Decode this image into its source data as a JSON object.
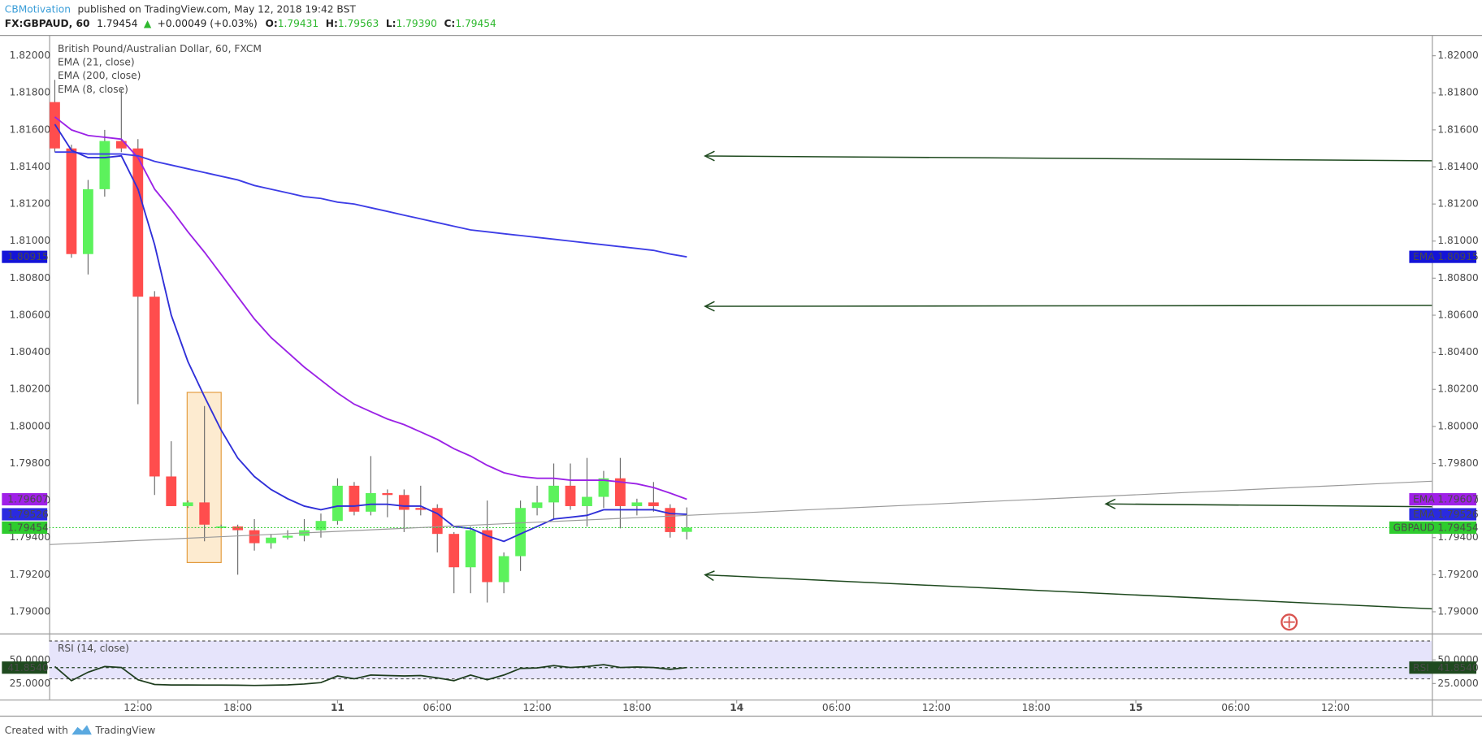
{
  "header": {
    "author": "CBMotivation",
    "published": "published on TradingView.com, May 12, 2018 19:42 BST",
    "symbol": "FX:GBPAUD, 60",
    "last": "1.79454",
    "arrow": "▲",
    "change": "+0.00049 (+0.03%)",
    "ohlc": [
      {
        "label": "O:",
        "value": "1.79431"
      },
      {
        "label": "H:",
        "value": "1.79563"
      },
      {
        "label": "L:",
        "value": "1.79390"
      },
      {
        "label": "C:",
        "value": "1.79454"
      }
    ]
  },
  "footer": {
    "created": "Created with",
    "brand": "TradingView"
  },
  "chart_data": [
    {
      "type": "candlestick",
      "title": "British Pound/Australian Dollar, 60, FXCM",
      "badge_name": "GBPAUD",
      "up_color": "#5cf25c",
      "down_color": "#ff4d4d",
      "price_line_color": "#2ecc2e",
      "x": [
        0,
        1,
        2,
        3,
        4,
        5,
        6,
        7,
        8,
        9,
        10,
        11,
        12,
        13,
        14,
        15,
        16,
        17,
        18,
        19,
        20,
        21,
        22,
        23,
        24,
        25,
        26,
        27,
        28,
        29,
        30,
        31,
        32,
        33,
        34,
        35,
        36,
        37,
        38
      ],
      "open": [
        1.8175,
        1.815,
        1.8093,
        1.8128,
        1.8154,
        1.815,
        1.807,
        1.7973,
        1.7957,
        1.7959,
        1.7946,
        1.7946,
        1.7944,
        1.7937,
        1.794,
        1.7941,
        1.7944,
        1.7949,
        1.7968,
        1.7954,
        1.7964,
        1.7963,
        1.7956,
        1.7956,
        1.7942,
        1.7924,
        1.7944,
        1.7916,
        1.793,
        1.7956,
        1.7959,
        1.7968,
        1.7957,
        1.7962,
        1.7972,
        1.7957,
        1.7959,
        1.7956,
        1.79431
      ],
      "high": [
        1.8187,
        1.8152,
        1.8133,
        1.816,
        1.8182,
        1.8155,
        1.8073,
        1.7992,
        1.796,
        1.8011,
        1.7947,
        1.7947,
        1.795,
        1.7942,
        1.7944,
        1.795,
        1.7953,
        1.7972,
        1.797,
        1.7984,
        1.7966,
        1.7966,
        1.7968,
        1.7958,
        1.7943,
        1.7946,
        1.796,
        1.7932,
        1.796,
        1.7968,
        1.798,
        1.798,
        1.7983,
        1.7976,
        1.7983,
        1.7961,
        1.797,
        1.7958,
        1.79563
      ],
      "low": [
        1.8148,
        1.8091,
        1.8082,
        1.8124,
        1.8148,
        1.8012,
        1.7963,
        1.7957,
        1.7956,
        1.7938,
        1.7945,
        1.792,
        1.7933,
        1.7934,
        1.7939,
        1.7938,
        1.794,
        1.7947,
        1.7952,
        1.7952,
        1.7951,
        1.7943,
        1.7952,
        1.7932,
        1.791,
        1.791,
        1.7905,
        1.791,
        1.7922,
        1.7952,
        1.795,
        1.7955,
        1.7946,
        1.7956,
        1.7945,
        1.7952,
        1.7954,
        1.794,
        1.7939
      ],
      "close": [
        1.815,
        1.8093,
        1.8128,
        1.8154,
        1.815,
        1.807,
        1.7973,
        1.7957,
        1.7959,
        1.7947,
        1.7946,
        1.7944,
        1.7937,
        1.794,
        1.7941,
        1.7944,
        1.7949,
        1.7968,
        1.7954,
        1.7964,
        1.7963,
        1.7955,
        1.7955,
        1.7942,
        1.7924,
        1.7944,
        1.7916,
        1.793,
        1.7956,
        1.7959,
        1.7968,
        1.7957,
        1.7962,
        1.7972,
        1.7957,
        1.7959,
        1.7957,
        1.7943,
        1.79454
      ],
      "series": [
        {
          "name": "EMA (21, close)",
          "badge_name": "EMA",
          "color": "#9b22e6",
          "badge_color": "#a020e8",
          "values": [
            1.8167,
            1.816,
            1.8157,
            1.8156,
            1.8155,
            1.8145,
            1.8128,
            1.8117,
            1.8105,
            1.8094,
            1.8082,
            1.807,
            1.8058,
            1.8048,
            1.804,
            1.8032,
            1.8025,
            1.8018,
            1.8012,
            1.8008,
            1.8004,
            1.8001,
            1.7997,
            1.7993,
            1.7988,
            1.7984,
            1.7979,
            1.7975,
            1.7973,
            1.7972,
            1.7972,
            1.7971,
            1.7971,
            1.7971,
            1.797,
            1.7969,
            1.7967,
            1.7964,
            1.79607
          ]
        },
        {
          "name": "EMA (200, close)",
          "badge_name": "EMA",
          "color": "#3d3de6",
          "badge_color": "#1414d8",
          "values": [
            1.8148,
            1.8148,
            1.8147,
            1.8147,
            1.8147,
            1.8146,
            1.8143,
            1.8141,
            1.8139,
            1.8137,
            1.8135,
            1.8133,
            1.813,
            1.8128,
            1.8126,
            1.8124,
            1.8123,
            1.8121,
            1.812,
            1.8118,
            1.8116,
            1.8114,
            1.8112,
            1.811,
            1.8108,
            1.8106,
            1.8105,
            1.8104,
            1.8103,
            1.8102,
            1.8101,
            1.81,
            1.8099,
            1.8098,
            1.8097,
            1.8096,
            1.8095,
            1.8093,
            1.80915
          ]
        },
        {
          "name": "EMA (8, close)",
          "badge_name": "EMA",
          "color": "#2f2fd8",
          "badge_color": "#2a2ae0",
          "values": [
            1.8163,
            1.8149,
            1.8145,
            1.8145,
            1.8146,
            1.8128,
            1.8098,
            1.806,
            1.8035,
            1.8016,
            1.7998,
            1.7983,
            1.7973,
            1.7966,
            1.7961,
            1.7957,
            1.7955,
            1.7957,
            1.7957,
            1.7958,
            1.7958,
            1.7957,
            1.7957,
            1.7953,
            1.7946,
            1.7945,
            1.7941,
            1.7938,
            1.7942,
            1.7946,
            1.795,
            1.7951,
            1.7952,
            1.7955,
            1.7955,
            1.7955,
            1.7955,
            1.7953,
            1.79526
          ]
        }
      ],
      "xlim": [
        -0.34,
        82.8
      ],
      "ylim": [
        1.78883,
        1.82107
      ],
      "yticks": [
        {
          "value": 1.79,
          "label": "1.79000"
        },
        {
          "value": 1.792,
          "label": "1.79200"
        },
        {
          "value": 1.794,
          "label": "1.79400"
        },
        {
          "value": 1.796,
          "label": "1.79600"
        },
        {
          "value": 1.798,
          "label": "1.79800"
        },
        {
          "value": 1.8,
          "label": "1.80000"
        },
        {
          "value": 1.802,
          "label": "1.80200"
        },
        {
          "value": 1.804,
          "label": "1.80400"
        },
        {
          "value": 1.806,
          "label": "1.80600"
        },
        {
          "value": 1.808,
          "label": "1.80800"
        },
        {
          "value": 1.81,
          "label": "1.81000"
        },
        {
          "value": 1.812,
          "label": "1.81200"
        },
        {
          "value": 1.814,
          "label": "1.81400"
        },
        {
          "value": 1.816,
          "label": "1.81600"
        },
        {
          "value": 1.818,
          "label": "1.81800"
        },
        {
          "value": 1.82,
          "label": "1.82000"
        }
      ],
      "grid": false
    },
    {
      "type": "line",
      "series": [
        {
          "name": "RSI (14, close)",
          "badge_name": "RSI",
          "color": "#1e3d1e",
          "badge_color": "#1f4a1f",
          "values": [
            43,
            28,
            37,
            43,
            42,
            29,
            24,
            23.5,
            23.5,
            23.4,
            23.4,
            23.3,
            23,
            23.3,
            23.6,
            24.5,
            26,
            33,
            30,
            34,
            33.5,
            33,
            33.5,
            31,
            28,
            34,
            29,
            34,
            41,
            41.5,
            44,
            42,
            43,
            45,
            42,
            42.5,
            42,
            40,
            41.854
          ],
          "value_labels": [
            null,
            null,
            null,
            null,
            null,
            null,
            null,
            null,
            null,
            null,
            null,
            null,
            null,
            null,
            null,
            null,
            null,
            null,
            null,
            null,
            null,
            null,
            null,
            null,
            null,
            null,
            null,
            null,
            null,
            null,
            null,
            null,
            null,
            null,
            null,
            null,
            null,
            null,
            "41.8540"
          ]
        }
      ],
      "x": [
        0,
        1,
        2,
        3,
        4,
        5,
        6,
        7,
        8,
        9,
        10,
        11,
        12,
        13,
        14,
        15,
        16,
        17,
        18,
        19,
        20,
        21,
        22,
        23,
        24,
        25,
        26,
        27,
        28,
        29,
        30,
        31,
        32,
        33,
        34,
        35,
        36,
        37,
        38
      ],
      "band": [
        30,
        70
      ],
      "band_color": "#e6e4fb",
      "xlim": [
        -0.34,
        82.8
      ],
      "ylim": [
        8,
        76
      ],
      "yticks": [
        {
          "value": 25,
          "label": "25.0000"
        },
        {
          "value": 50,
          "label": "50.0000"
        }
      ],
      "xticks": [
        {
          "value": 5,
          "label": "12:00"
        },
        {
          "value": 11,
          "label": "18:00"
        },
        {
          "value": 17,
          "label": "11"
        },
        {
          "value": 23,
          "label": "06:00"
        },
        {
          "value": 29,
          "label": "12:00"
        },
        {
          "value": 35,
          "label": "18:00"
        },
        {
          "value": 41,
          "label": "14"
        },
        {
          "value": 47,
          "label": "06:00"
        },
        {
          "value": 53,
          "label": "12:00"
        },
        {
          "value": 59,
          "label": "18:00"
        },
        {
          "value": 65,
          "label": "15"
        },
        {
          "value": 71,
          "label": "06:00"
        },
        {
          "value": 77,
          "label": "12:00"
        }
      ],
      "grid": false
    }
  ]
}
